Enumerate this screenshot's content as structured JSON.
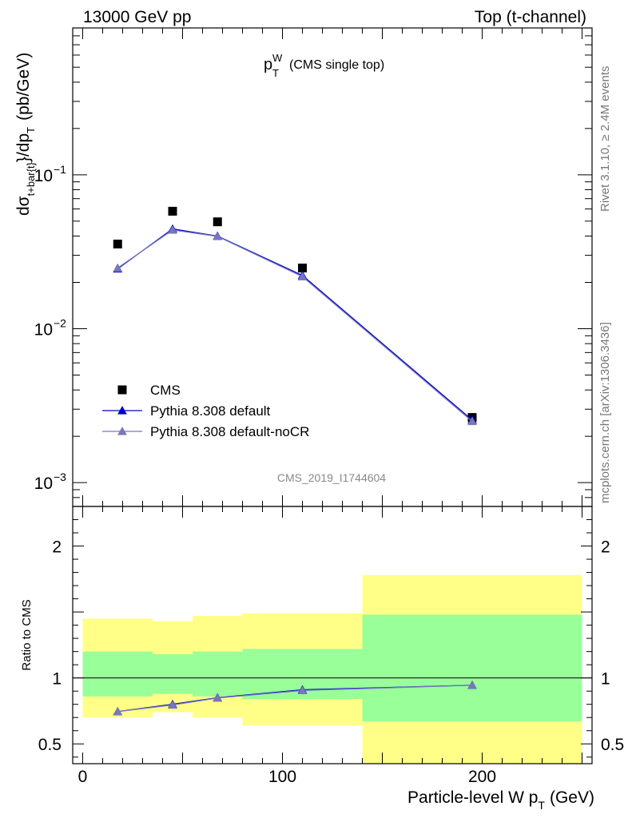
{
  "header": {
    "energy_label": "13000 GeV pp",
    "process_label": "Top (t-channel)",
    "plot_title_main": "p",
    "plot_title_sub": "T",
    "plot_title_sup": "W",
    "plot_title_note": "(CMS single top)",
    "analysis_id": "CMS_2019_I1744604",
    "side_note_top": "Rivet 3.1.10, ≥ 2.4M events",
    "side_note_bottom": "mcplots.cern.ch [arXiv:1306.3436]"
  },
  "colors": {
    "cms": "#000000",
    "pythia_default": "#0000cc",
    "pythia_nocr": "#7777bb",
    "band_inner": "#99ff99",
    "band_outer": "#ffff88"
  },
  "chart_data": [
    {
      "type": "scatter",
      "panel": "main",
      "ylabel": "dσt+bar{t}/dpT (pb/GeV)",
      "ylabel_parts": {
        "pre": "dσ",
        "sub": "t+bar{t}",
        "mid": "}/dp",
        "sub2": "T",
        "unit": "(pb/GeV)"
      },
      "yscale": "log",
      "ylim": [
        0.0007,
        0.9
      ],
      "xlim": [
        -5,
        255
      ],
      "ytick_labels": [
        {
          "value": 0.1,
          "base": "10",
          "exp": "−1"
        },
        {
          "value": 0.01,
          "base": "10",
          "exp": "−2"
        },
        {
          "value": 0.001,
          "base": "10",
          "exp": "−3"
        }
      ],
      "legend": {
        "placement": "bottom-left",
        "entries": [
          "CMS",
          "Pythia 8.308 default",
          "Pythia 8.308 default-noCR"
        ]
      },
      "series": [
        {
          "name": "CMS",
          "marker": "square",
          "x": [
            17.5,
            45,
            67.5,
            110,
            195
          ],
          "values": [
            0.0355,
            0.058,
            0.0495,
            0.0248,
            0.00265
          ]
        },
        {
          "name": "Pythia 8.308 default",
          "marker": "triangle",
          "x": [
            17.5,
            45,
            67.5,
            110,
            195
          ],
          "values": [
            0.0245,
            0.0445,
            0.04,
            0.0222,
            0.00255
          ]
        },
        {
          "name": "Pythia 8.308 default-noCR",
          "marker": "triangle",
          "x": [
            17.5,
            45,
            67.5,
            110,
            195
          ],
          "values": [
            0.0248,
            0.0438,
            0.0398,
            0.0218,
            0.0025
          ]
        }
      ]
    },
    {
      "type": "line",
      "panel": "ratio",
      "ylabel": "Ratio to CMS",
      "xlabel": "Particle-level W pT (GeV)",
      "xlabel_parts": {
        "pre": "Particle-level W p",
        "sub": "T",
        "post": "(GeV)"
      },
      "xlim": [
        -5,
        255
      ],
      "ylim": [
        0.35,
        2.3
      ],
      "xtick_labels": [
        "0",
        "100",
        "200"
      ],
      "xtick_values": [
        0,
        100,
        200
      ],
      "ytick_labels": [
        "0.5",
        "1",
        "2"
      ],
      "ytick_values": [
        0.5,
        1,
        2
      ],
      "bands": [
        {
          "x0": 0,
          "x1": 35,
          "inner": [
            0.86,
            1.2
          ],
          "outer": [
            0.7,
            1.45
          ]
        },
        {
          "x0": 35,
          "x1": 55,
          "inner": [
            0.88,
            1.18
          ],
          "outer": [
            0.74,
            1.43
          ]
        },
        {
          "x0": 55,
          "x1": 80,
          "inner": [
            0.86,
            1.2
          ],
          "outer": [
            0.7,
            1.47
          ]
        },
        {
          "x0": 80,
          "x1": 140,
          "inner": [
            0.84,
            1.22
          ],
          "outer": [
            0.64,
            1.49
          ]
        },
        {
          "x0": 140,
          "x1": 250,
          "inner": [
            0.67,
            1.48
          ],
          "outer": [
            0.35,
            1.78
          ]
        }
      ],
      "series": [
        {
          "name": "Pythia 8.308 default",
          "x": [
            17.5,
            45,
            67.5,
            110,
            195
          ],
          "values": [
            0.745,
            0.8,
            0.85,
            0.91,
            0.945
          ]
        },
        {
          "name": "Pythia 8.308 default-noCR",
          "x": [
            17.5,
            45,
            67.5,
            110,
            195
          ],
          "values": [
            0.745,
            0.795,
            0.848,
            0.905,
            0.945
          ]
        }
      ]
    }
  ]
}
